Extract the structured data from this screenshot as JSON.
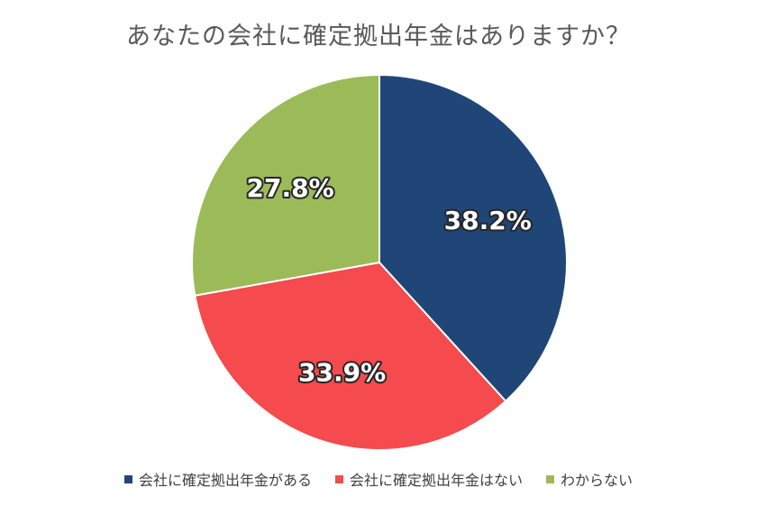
{
  "chart_data": {
    "type": "pie",
    "title": "あなたの会社に確定拠出年金はありますか？",
    "categories": [
      "会社に確定拠出年金がある",
      "会社に確定拠出年金はない",
      "わからない"
    ],
    "values": [
      38.2,
      33.9,
      27.8
    ],
    "labels": [
      "38.2%",
      "33.9%",
      "27.8%"
    ],
    "colors": [
      "#1f4677",
      "#f54a4e",
      "#9bbb59"
    ],
    "start_angle_deg": 0,
    "direction": "clockwise",
    "legend_position": "bottom"
  }
}
